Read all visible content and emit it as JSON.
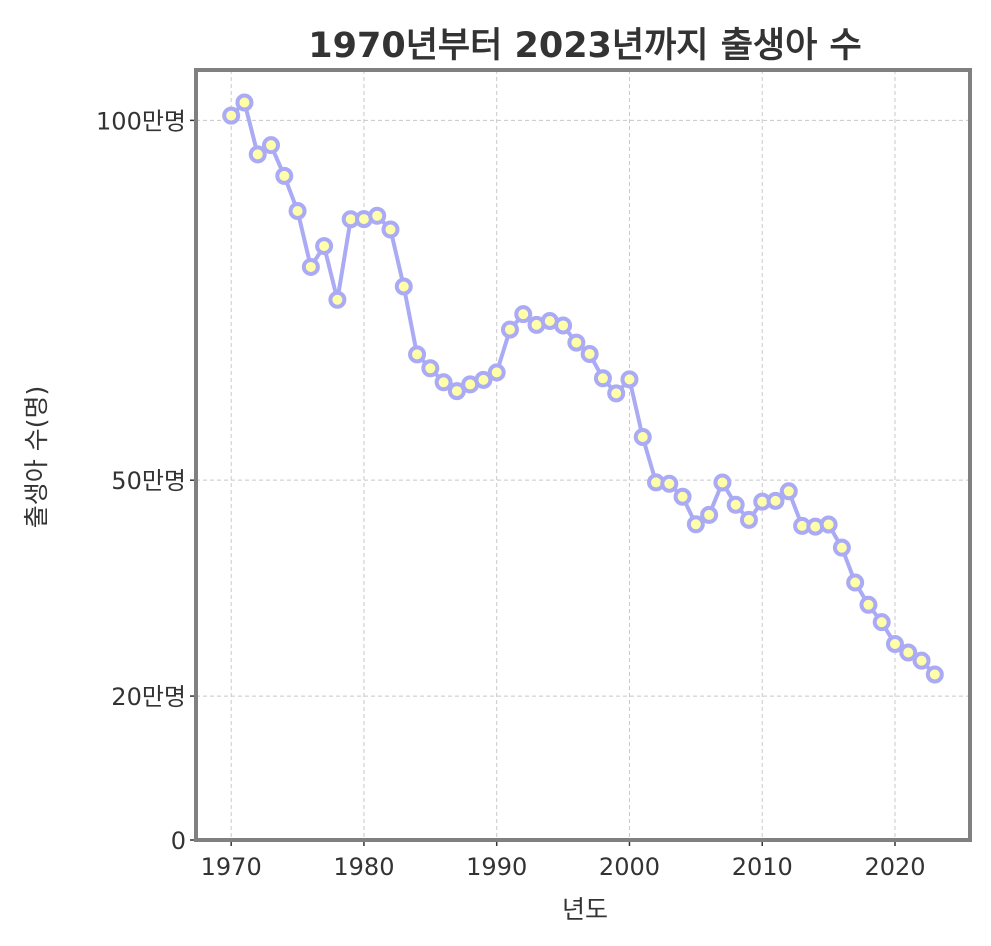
{
  "chart_data": {
    "type": "line",
    "title": "1970년부터 2023년까지 출생아 수",
    "xlabel": "년도",
    "ylabel": "출생아 수(명)",
    "xlim": [
      1967.35,
      2025.65
    ],
    "ylim": [
      0,
      1070000
    ],
    "x_ticks": [
      1970,
      1980,
      1990,
      2000,
      2010,
      2020
    ],
    "y_ticks": [
      {
        "value": 0,
        "label": "0"
      },
      {
        "value": 200000,
        "label": "20만명"
      },
      {
        "value": 500000,
        "label": "50만명"
      },
      {
        "value": 1000000,
        "label": "100만명"
      }
    ],
    "grid": true,
    "colors": {
      "line": "#aaaaf5",
      "marker_fill": "#ffffaa",
      "frame": "#808080",
      "grid": "#c8c8c8"
    },
    "x": [
      1970,
      1971,
      1972,
      1973,
      1974,
      1975,
      1976,
      1977,
      1978,
      1979,
      1980,
      1981,
      1982,
      1983,
      1984,
      1985,
      1986,
      1987,
      1988,
      1989,
      1990,
      1991,
      1992,
      1993,
      1994,
      1995,
      1996,
      1997,
      1998,
      1999,
      2000,
      2001,
      2002,
      2003,
      2004,
      2005,
      2006,
      2007,
      2008,
      2009,
      2010,
      2011,
      2012,
      2013,
      2014,
      2015,
      2016,
      2017,
      2018,
      2019,
      2020,
      2021,
      2022,
      2023
    ],
    "series": [
      {
        "values": [
          1006645,
          1024773,
          952780,
          965521,
          922823,
          874030,
          796331,
          825339,
          750728,
          862669,
          862835,
          867409,
          848312,
          769155,
          674793,
          655489,
          636019,
          623831,
          633092,
          639431,
          649738,
          709275,
          730678,
          715826,
          721185,
          715020,
          691226,
          675394,
          641594,
          620668,
          640089,
          559934,
          496911,
          495036,
          476958,
          438707,
          451759,
          496822,
          465892,
          444849,
          470171,
          471265,
          484550,
          436455,
          435435,
          438420,
          406243,
          357771,
          326822,
          302676,
          272337,
          260562,
          249186,
          230028
        ]
      }
    ]
  }
}
